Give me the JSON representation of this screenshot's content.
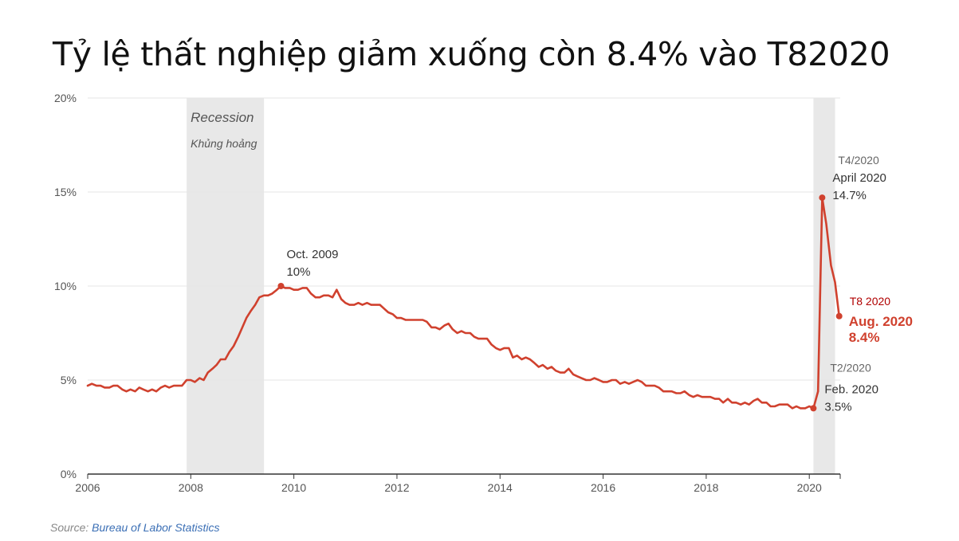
{
  "title": "Tỷ lệ thất nghiệp giảm xuống còn 8.4% vào T82020",
  "source": {
    "prefix": "Source: ",
    "name": "Bureau of Labor Statistics"
  },
  "colors": {
    "line": "#d0412e",
    "recession": "#e8e8e8",
    "grid": "#e6e6e6",
    "accent_dark": "#b00000"
  },
  "chart_data": {
    "type": "line",
    "title": "Tỷ lệ thất nghiệp giảm xuống còn 8.4% vào T82020",
    "xlabel": "",
    "ylabel": "",
    "xlim": [
      2006,
      2020.6
    ],
    "ylim": [
      0,
      20
    ],
    "x_ticks": [
      2006,
      2008,
      2010,
      2012,
      2014,
      2016,
      2018,
      2020
    ],
    "y_ticks": [
      0,
      5,
      10,
      15,
      20
    ],
    "y_tick_labels": [
      "0%",
      "5%",
      "10%",
      "15%",
      "20%"
    ],
    "grid": true,
    "recessions": [
      {
        "start": 2007.92,
        "end": 2009.42,
        "label": "Recession",
        "sublabel": "Khủng hoảng"
      },
      {
        "start": 2020.08,
        "end": 2020.5,
        "label": "",
        "sublabel": ""
      }
    ],
    "series": [
      {
        "values_note": "",
        "points": [
          [
            2006.0,
            4.7
          ],
          [
            2006.08,
            4.8
          ],
          [
            2006.17,
            4.7
          ],
          [
            2006.25,
            4.7
          ],
          [
            2006.33,
            4.6
          ],
          [
            2006.42,
            4.6
          ],
          [
            2006.5,
            4.7
          ],
          [
            2006.58,
            4.7
          ],
          [
            2006.67,
            4.5
          ],
          [
            2006.75,
            4.4
          ],
          [
            2006.83,
            4.5
          ],
          [
            2006.92,
            4.4
          ],
          [
            2007.0,
            4.6
          ],
          [
            2007.08,
            4.5
          ],
          [
            2007.17,
            4.4
          ],
          [
            2007.25,
            4.5
          ],
          [
            2007.33,
            4.4
          ],
          [
            2007.42,
            4.6
          ],
          [
            2007.5,
            4.7
          ],
          [
            2007.58,
            4.6
          ],
          [
            2007.67,
            4.7
          ],
          [
            2007.75,
            4.7
          ],
          [
            2007.83,
            4.7
          ],
          [
            2007.92,
            5.0
          ],
          [
            2008.0,
            5.0
          ],
          [
            2008.08,
            4.9
          ],
          [
            2008.17,
            5.1
          ],
          [
            2008.25,
            5.0
          ],
          [
            2008.33,
            5.4
          ],
          [
            2008.42,
            5.6
          ],
          [
            2008.5,
            5.8
          ],
          [
            2008.58,
            6.1
          ],
          [
            2008.67,
            6.1
          ],
          [
            2008.75,
            6.5
          ],
          [
            2008.83,
            6.8
          ],
          [
            2008.92,
            7.3
          ],
          [
            2009.0,
            7.8
          ],
          [
            2009.08,
            8.3
          ],
          [
            2009.17,
            8.7
          ],
          [
            2009.25,
            9.0
          ],
          [
            2009.33,
            9.4
          ],
          [
            2009.42,
            9.5
          ],
          [
            2009.5,
            9.5
          ],
          [
            2009.58,
            9.6
          ],
          [
            2009.67,
            9.8
          ],
          [
            2009.75,
            10.0
          ],
          [
            2009.83,
            9.9
          ],
          [
            2009.92,
            9.9
          ],
          [
            2010.0,
            9.8
          ],
          [
            2010.08,
            9.8
          ],
          [
            2010.17,
            9.9
          ],
          [
            2010.25,
            9.9
          ],
          [
            2010.33,
            9.6
          ],
          [
            2010.42,
            9.4
          ],
          [
            2010.5,
            9.4
          ],
          [
            2010.58,
            9.5
          ],
          [
            2010.67,
            9.5
          ],
          [
            2010.75,
            9.4
          ],
          [
            2010.83,
            9.8
          ],
          [
            2010.92,
            9.3
          ],
          [
            2011.0,
            9.1
          ],
          [
            2011.08,
            9.0
          ],
          [
            2011.17,
            9.0
          ],
          [
            2011.25,
            9.1
          ],
          [
            2011.33,
            9.0
          ],
          [
            2011.42,
            9.1
          ],
          [
            2011.5,
            9.0
          ],
          [
            2011.58,
            9.0
          ],
          [
            2011.67,
            9.0
          ],
          [
            2011.75,
            8.8
          ],
          [
            2011.83,
            8.6
          ],
          [
            2011.92,
            8.5
          ],
          [
            2012.0,
            8.3
          ],
          [
            2012.08,
            8.3
          ],
          [
            2012.17,
            8.2
          ],
          [
            2012.25,
            8.2
          ],
          [
            2012.33,
            8.2
          ],
          [
            2012.42,
            8.2
          ],
          [
            2012.5,
            8.2
          ],
          [
            2012.58,
            8.1
          ],
          [
            2012.67,
            7.8
          ],
          [
            2012.75,
            7.8
          ],
          [
            2012.83,
            7.7
          ],
          [
            2012.92,
            7.9
          ],
          [
            2013.0,
            8.0
          ],
          [
            2013.08,
            7.7
          ],
          [
            2013.17,
            7.5
          ],
          [
            2013.25,
            7.6
          ],
          [
            2013.33,
            7.5
          ],
          [
            2013.42,
            7.5
          ],
          [
            2013.5,
            7.3
          ],
          [
            2013.58,
            7.2
          ],
          [
            2013.67,
            7.2
          ],
          [
            2013.75,
            7.2
          ],
          [
            2013.83,
            6.9
          ],
          [
            2013.92,
            6.7
          ],
          [
            2014.0,
            6.6
          ],
          [
            2014.08,
            6.7
          ],
          [
            2014.17,
            6.7
          ],
          [
            2014.25,
            6.2
          ],
          [
            2014.33,
            6.3
          ],
          [
            2014.42,
            6.1
          ],
          [
            2014.5,
            6.2
          ],
          [
            2014.58,
            6.1
          ],
          [
            2014.67,
            5.9
          ],
          [
            2014.75,
            5.7
          ],
          [
            2014.83,
            5.8
          ],
          [
            2014.92,
            5.6
          ],
          [
            2015.0,
            5.7
          ],
          [
            2015.08,
            5.5
          ],
          [
            2015.17,
            5.4
          ],
          [
            2015.25,
            5.4
          ],
          [
            2015.33,
            5.6
          ],
          [
            2015.42,
            5.3
          ],
          [
            2015.5,
            5.2
          ],
          [
            2015.58,
            5.1
          ],
          [
            2015.67,
            5.0
          ],
          [
            2015.75,
            5.0
          ],
          [
            2015.83,
            5.1
          ],
          [
            2015.92,
            5.0
          ],
          [
            2016.0,
            4.9
          ],
          [
            2016.08,
            4.9
          ],
          [
            2016.17,
            5.0
          ],
          [
            2016.25,
            5.0
          ],
          [
            2016.33,
            4.8
          ],
          [
            2016.42,
            4.9
          ],
          [
            2016.5,
            4.8
          ],
          [
            2016.58,
            4.9
          ],
          [
            2016.67,
            5.0
          ],
          [
            2016.75,
            4.9
          ],
          [
            2016.83,
            4.7
          ],
          [
            2016.92,
            4.7
          ],
          [
            2017.0,
            4.7
          ],
          [
            2017.08,
            4.6
          ],
          [
            2017.17,
            4.4
          ],
          [
            2017.25,
            4.4
          ],
          [
            2017.33,
            4.4
          ],
          [
            2017.42,
            4.3
          ],
          [
            2017.5,
            4.3
          ],
          [
            2017.58,
            4.4
          ],
          [
            2017.67,
            4.2
          ],
          [
            2017.75,
            4.1
          ],
          [
            2017.83,
            4.2
          ],
          [
            2017.92,
            4.1
          ],
          [
            2018.0,
            4.1
          ],
          [
            2018.08,
            4.1
          ],
          [
            2018.17,
            4.0
          ],
          [
            2018.25,
            4.0
          ],
          [
            2018.33,
            3.8
          ],
          [
            2018.42,
            4.0
          ],
          [
            2018.5,
            3.8
          ],
          [
            2018.58,
            3.8
          ],
          [
            2018.67,
            3.7
          ],
          [
            2018.75,
            3.8
          ],
          [
            2018.83,
            3.7
          ],
          [
            2018.92,
            3.9
          ],
          [
            2019.0,
            4.0
          ],
          [
            2019.08,
            3.8
          ],
          [
            2019.17,
            3.8
          ],
          [
            2019.25,
            3.6
          ],
          [
            2019.33,
            3.6
          ],
          [
            2019.42,
            3.7
          ],
          [
            2019.5,
            3.7
          ],
          [
            2019.58,
            3.7
          ],
          [
            2019.67,
            3.5
          ],
          [
            2019.75,
            3.6
          ],
          [
            2019.83,
            3.5
          ],
          [
            2019.92,
            3.5
          ],
          [
            2020.0,
            3.6
          ],
          [
            2020.08,
            3.5
          ],
          [
            2020.17,
            4.4
          ],
          [
            2020.25,
            14.7
          ],
          [
            2020.33,
            13.3
          ],
          [
            2020.42,
            11.1
          ],
          [
            2020.5,
            10.2
          ],
          [
            2020.58,
            8.4
          ]
        ]
      }
    ],
    "annotations": [
      {
        "x": 2009.75,
        "y": 10.0,
        "lines": [
          "Oct. 2009",
          "10%"
        ],
        "style": "normal"
      },
      {
        "x": 2020.25,
        "y": 14.7,
        "lines": [
          "T4/2020",
          "April 2020",
          "14.7%"
        ],
        "style": "normal"
      },
      {
        "x": 2020.08,
        "y": 3.5,
        "lines": [
          "T2/2020",
          "Feb. 2020",
          "3.5%"
        ],
        "style": "normal"
      },
      {
        "x": 2020.58,
        "y": 8.4,
        "lines": [
          "T8 2020",
          "Aug. 2020",
          "8.4%"
        ],
        "style": "highlight"
      }
    ]
  }
}
